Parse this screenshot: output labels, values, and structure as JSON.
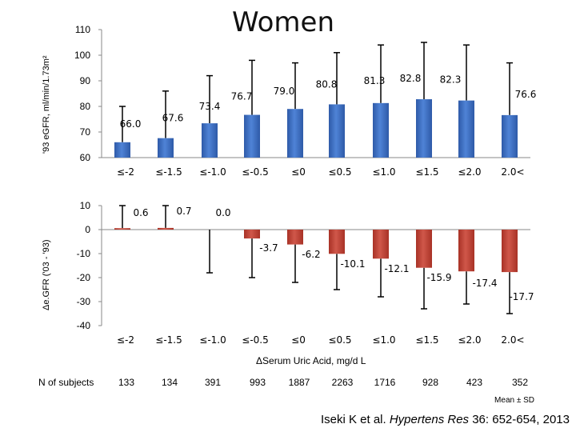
{
  "title": "Women",
  "citation": {
    "text": "Iseki K et al.",
    "journal": "Hypertens Res",
    "details": "36: 652-654, 2013"
  },
  "footnote": "Mean ± SD",
  "xlabel": "ΔSerum Uric Acid, mg/d L",
  "n_subjects": {
    "label": "N of subjects",
    "values": [
      133,
      134,
      391,
      993,
      1887,
      2263,
      1716,
      928,
      423,
      352
    ]
  },
  "chart_data": [
    {
      "type": "bar",
      "name": "top",
      "ylabel": "'93 eGFR, ml/min/1.73m²",
      "categories": [
        "≤-2",
        "≤-1.5",
        "≤-1.0",
        "≤-0.5",
        "≤0",
        "≤0.5",
        "≤1.0",
        "≤1.5",
        "≤2.0",
        "2.0<"
      ],
      "values": [
        66.0,
        67.6,
        73.4,
        76.7,
        79.0,
        80.8,
        81.3,
        82.8,
        82.3,
        76.6
      ],
      "value_labels": [
        "66.0",
        "67.6",
        "73.4",
        "76.7",
        "79.0",
        "80.8",
        "81.3",
        "82.8",
        "82.3",
        "76.6"
      ],
      "error_upper": [
        80,
        86,
        92,
        98,
        97,
        101,
        104,
        105,
        104,
        97
      ],
      "ylim": [
        60,
        110
      ],
      "yticks": [
        60,
        70,
        80,
        90,
        100,
        110
      ],
      "color": "#3d6fc0"
    },
    {
      "type": "bar",
      "name": "bottom",
      "ylabel": "Δe.GFR ('03 - '93)",
      "categories": [
        "≤-2",
        "≤-1.5",
        "≤-1.0",
        "≤-0.5",
        "≤0",
        "≤0.5",
        "≤1.0",
        "≤1.5",
        "≤2.0",
        "2.0<"
      ],
      "values": [
        0.6,
        0.7,
        0.0,
        -3.7,
        -6.2,
        -10.1,
        -12.1,
        -15.9,
        -17.4,
        -17.7
      ],
      "value_labels": [
        "0.6",
        "0.7",
        "0.0",
        "-3.7",
        "-6.2",
        "-10.1",
        "-12.1",
        "-15.9",
        "-17.4",
        "-17.7"
      ],
      "error_whisker": [
        10,
        10,
        -18,
        -20,
        -22,
        -25,
        -28,
        -33,
        -31,
        -35
      ],
      "ylim": [
        -40,
        10
      ],
      "yticks": [
        -40,
        -30,
        -20,
        -10,
        0,
        10
      ],
      "color": "#c0392b"
    }
  ]
}
